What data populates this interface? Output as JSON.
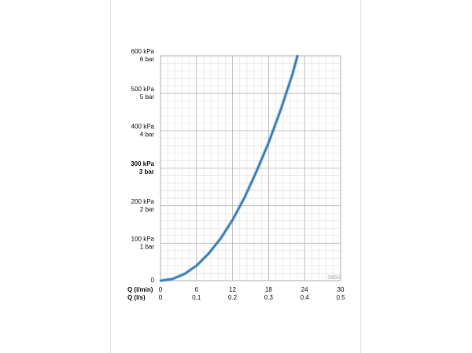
{
  "chart_data": {
    "type": "line",
    "x": [
      0,
      2,
      4,
      6,
      8,
      10,
      12,
      14,
      16,
      18,
      20,
      22,
      22.8
    ],
    "values": [
      0,
      4.6,
      18,
      40,
      72,
      112,
      162,
      222,
      292,
      368,
      455,
      552,
      600
    ],
    "color": "#3d7fb6",
    "xlim": [
      0,
      30
    ],
    "xticks": [
      0,
      6,
      12,
      18,
      24,
      30
    ],
    "xlabel": "Q (l/min)",
    "x2lim": [
      0,
      0.5
    ],
    "x2ticks": [
      0,
      0.1,
      0.2,
      0.3,
      0.4,
      0.5
    ],
    "x2label": "Q (l/s)",
    "ylim": [
      0,
      600
    ],
    "yticks": [
      0,
      {
        "value": 100,
        "label": "100 kPa"
      },
      {
        "value": 200,
        "label": "200 kPa"
      },
      {
        "value": 300,
        "label": "300 kPa"
      },
      {
        "value": 400,
        "label": "400 kPa"
      },
      {
        "value": 500,
        "label": "500 kPa"
      },
      {
        "value": 600,
        "label": "600 kPa"
      }
    ],
    "y2lim": [
      0,
      6
    ],
    "y2ticks": [
      {
        "value": 1,
        "label": "1 bar"
      },
      {
        "value": 2,
        "label": "2 bar"
      },
      {
        "value": 3,
        "label": "3 bar"
      },
      {
        "value": 4,
        "label": "4 bar"
      },
      {
        "value": 5,
        "label": "5 bar"
      },
      {
        "value": 6,
        "label": "6 bar"
      }
    ],
    "highlight_ytick": 300,
    "grid": true,
    "minor_grid_divisions": 5,
    "annotation": "3960"
  }
}
